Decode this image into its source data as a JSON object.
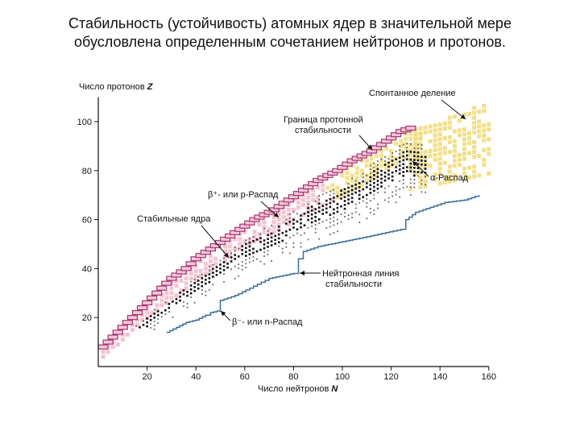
{
  "slide": {
    "title_line1": "Стабильность (устойчивость) атомных ядер в значительной мере",
    "title_line2": "обусловлена определенным сочетанием нейтронов и протонов."
  },
  "chart_data": {
    "type": "scatter",
    "ylabel": "Число протонов",
    "ylabel_symbol": "Z",
    "xlabel": "Число нейтронов",
    "xlabel_symbol": "N",
    "xlim": [
      0,
      160
    ],
    "ylim": [
      0,
      110
    ],
    "x_ticks": [
      "20",
      "40",
      "60",
      "80",
      "100",
      "120",
      "140",
      "160"
    ],
    "y_ticks": [
      "20",
      "40",
      "60",
      "80",
      "100"
    ],
    "annotations": {
      "fission": "Спонтанное деление",
      "proton_boundary_line1": "Граница протонной",
      "proton_boundary_line2": "стабильности",
      "alpha": "α-Распад",
      "beta_plus": "β⁺- или p-Распад",
      "stable": "Стабильные ядра",
      "neutron_line1": "Нейтронная линия",
      "neutron_line2": "стабильности",
      "beta_minus": "β⁻- или n-Распад"
    },
    "colors": {
      "proton_boundary": "#a8326e",
      "neutron_boundary": "#3a6f9a",
      "beta_plus_zone": "#f4b8c8",
      "alpha_zone": "#f1dc7a",
      "stable_nuclei": "#111111"
    },
    "neutron_line": [
      [
        28,
        14
      ],
      [
        32,
        16
      ],
      [
        36,
        18
      ],
      [
        40,
        19
      ],
      [
        44,
        21
      ],
      [
        46,
        22
      ],
      [
        50,
        23
      ],
      [
        50,
        27
      ],
      [
        56,
        29
      ],
      [
        62,
        32
      ],
      [
        70,
        36
      ],
      [
        80,
        38
      ],
      [
        82,
        40
      ],
      [
        82,
        44
      ],
      [
        84,
        47
      ],
      [
        90,
        49
      ],
      [
        100,
        51
      ],
      [
        110,
        53
      ],
      [
        124,
        56
      ],
      [
        126,
        60
      ],
      [
        130,
        63
      ],
      [
        136,
        65
      ],
      [
        142,
        67
      ],
      [
        150,
        68
      ],
      [
        156,
        70
      ]
    ],
    "proton_line": [
      [
        2,
        8
      ],
      [
        6,
        12
      ],
      [
        10,
        16
      ],
      [
        14,
        20
      ],
      [
        18,
        24
      ],
      [
        22,
        28
      ],
      [
        26,
        32
      ],
      [
        30,
        36
      ],
      [
        36,
        40
      ],
      [
        40,
        44
      ],
      [
        46,
        48
      ],
      [
        52,
        52
      ],
      [
        58,
        56
      ],
      [
        64,
        60
      ],
      [
        72,
        64
      ],
      [
        78,
        68
      ],
      [
        84,
        72
      ],
      [
        90,
        76
      ],
      [
        98,
        80
      ],
      [
        104,
        84
      ],
      [
        112,
        88
      ],
      [
        118,
        92
      ],
      [
        124,
        96
      ],
      [
        130,
        98
      ]
    ],
    "stable_line": [
      [
        1,
        1
      ],
      [
        4,
        4
      ],
      [
        8,
        7
      ],
      [
        12,
        11
      ],
      [
        16,
        15
      ],
      [
        20,
        18
      ],
      [
        24,
        21
      ],
      [
        28,
        24
      ],
      [
        32,
        27
      ],
      [
        36,
        30
      ],
      [
        40,
        33
      ],
      [
        44,
        36
      ],
      [
        48,
        38
      ],
      [
        52,
        41
      ],
      [
        56,
        44
      ],
      [
        60,
        47
      ],
      [
        66,
        50
      ],
      [
        72,
        53
      ],
      [
        78,
        56
      ],
      [
        84,
        60
      ],
      [
        90,
        63
      ],
      [
        96,
        66
      ],
      [
        102,
        69
      ],
      [
        108,
        72
      ],
      [
        114,
        76
      ],
      [
        120,
        80
      ],
      [
        126,
        83
      ]
    ],
    "grid": false,
    "legend": "none"
  }
}
